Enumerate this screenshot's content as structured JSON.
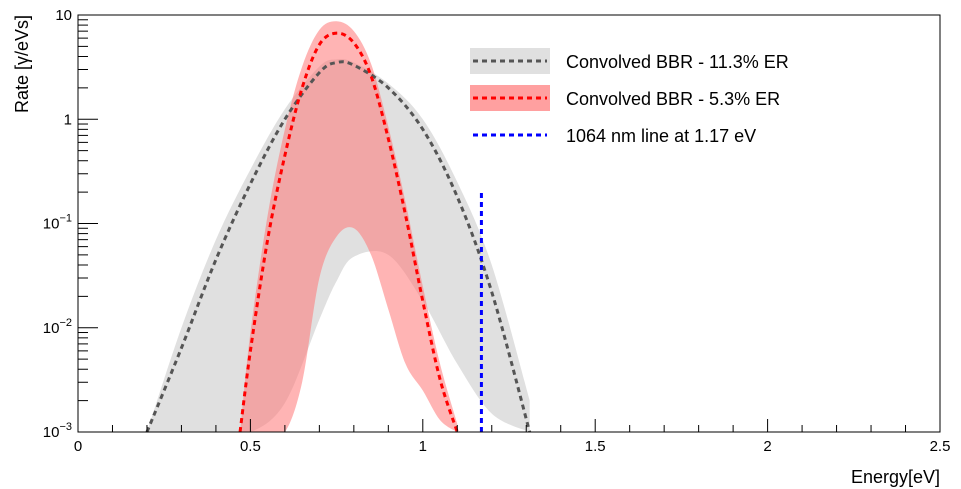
{
  "chart_data": {
    "type": "line",
    "title": "",
    "xlabel": "Energy[eV]",
    "ylabel": "Rate [γ/eVs]",
    "xlim": [
      0,
      2.5
    ],
    "ylim": [
      0.001,
      10
    ],
    "y_scale": "log",
    "grid": false,
    "legend_position": "top-right",
    "x_ticks": [
      {
        "value": 0,
        "label": "0"
      },
      {
        "value": 0.5,
        "label": "0.5"
      },
      {
        "value": 1,
        "label": "1"
      },
      {
        "value": 1.5,
        "label": "1.5"
      },
      {
        "value": 2,
        "label": "2"
      },
      {
        "value": 2.5,
        "label": "2.5"
      }
    ],
    "y_ticks": [
      {
        "value": 0.001,
        "base": "10",
        "exp": "−3"
      },
      {
        "value": 0.01,
        "base": "10",
        "exp": "−2"
      },
      {
        "value": 0.1,
        "base": "10",
        "exp": "−1"
      },
      {
        "value": 1,
        "base": "1",
        "exp": ""
      },
      {
        "value": 10,
        "base": "10",
        "exp": ""
      }
    ],
    "series": [
      {
        "name": "Convolved BBR - 11.3% ER",
        "line_color": "#555555",
        "band_color": "#e0e0e0",
        "x": [
          0.2,
          0.3,
          0.4,
          0.5,
          0.6,
          0.7,
          0.75,
          0.8,
          0.9,
          1.0,
          1.1,
          1.2,
          1.31
        ],
        "y": [
          0.001,
          0.0064,
          0.045,
          0.24,
          1.0,
          2.8,
          3.5,
          3.3,
          2.0,
          0.8,
          0.18,
          0.022,
          0.001
        ],
        "band_upper": [
          0.001,
          0.01,
          0.07,
          0.33,
          1.25,
          3.2,
          3.75,
          3.5,
          2.2,
          1.0,
          0.25,
          0.04,
          0.002
        ],
        "band_lower": [
          0.001,
          0.001,
          0.001,
          0.001,
          0.0019,
          0.012,
          0.028,
          0.048,
          0.05,
          0.018,
          0.0045,
          0.0015,
          0.001
        ]
      },
      {
        "name": "Convolved BBR - 5.3% ER",
        "line_color": "#ff0000",
        "band_color": "#ff7777",
        "x": [
          0.47,
          0.5,
          0.55,
          0.6,
          0.65,
          0.7,
          0.75,
          0.8,
          0.85,
          0.9,
          0.95,
          1.0,
          1.05,
          1.1
        ],
        "y": [
          0.001,
          0.006,
          0.07,
          0.45,
          2.0,
          5.2,
          6.7,
          5.4,
          2.6,
          0.65,
          0.12,
          0.018,
          0.0032,
          0.001
        ],
        "band_upper": [
          0.001,
          0.009,
          0.12,
          0.8,
          3.2,
          7.2,
          8.7,
          7.0,
          3.4,
          0.85,
          0.16,
          0.025,
          0.0045,
          0.0012
        ],
        "band_lower": [
          0.001,
          0.001,
          0.001,
          0.001,
          0.003,
          0.03,
          0.075,
          0.09,
          0.05,
          0.015,
          0.0045,
          0.0025,
          0.0013,
          0.001
        ]
      },
      {
        "name": "1064 nm line at 1.17 eV",
        "line_color": "#0000ff",
        "x": [
          1.17,
          1.17
        ],
        "y": [
          0.001,
          0.2
        ]
      }
    ]
  }
}
